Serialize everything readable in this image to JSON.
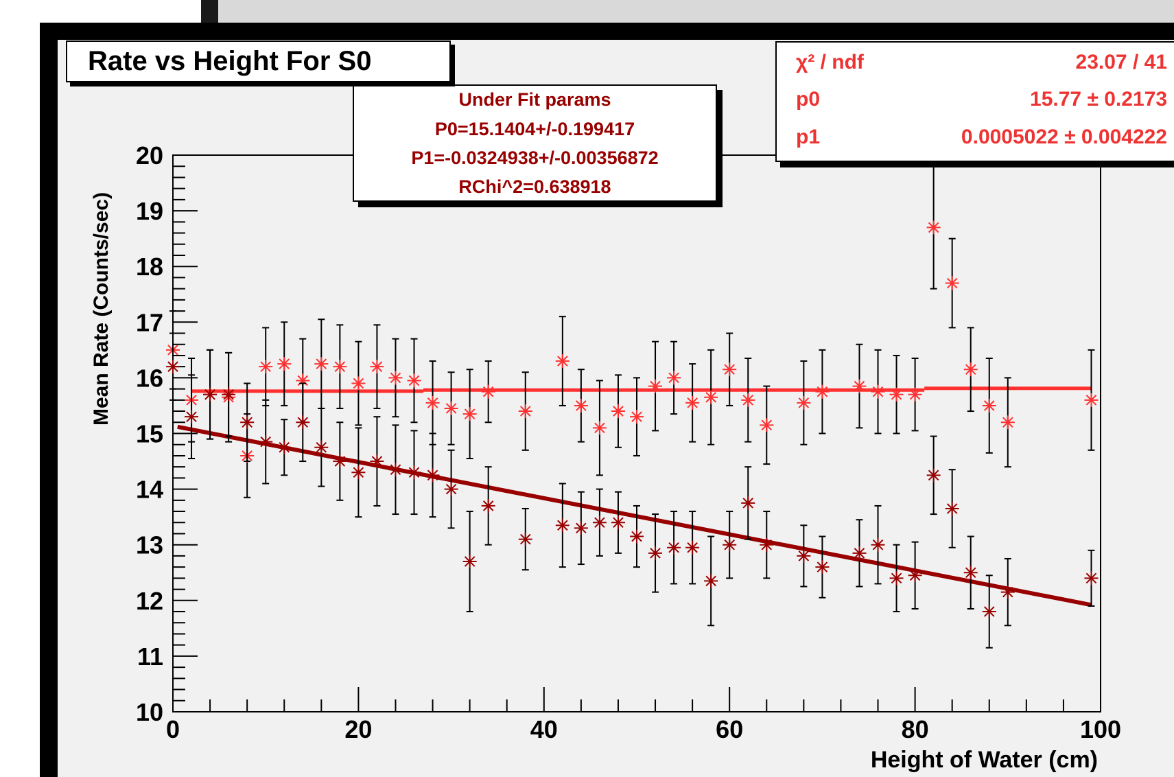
{
  "colors": {
    "background": "#f1f1f1",
    "under_fit_markers": "#990000",
    "fit_markers": "#ff3030",
    "under_fit_line": "#990000",
    "fit_line": "#ff3030",
    "stat_text": "#e33333"
  },
  "title_box": {
    "text": "Rate vs Height For S0"
  },
  "fit_box": {
    "heading": "Under Fit params",
    "p0": "P0=15.1404+/-0.199417",
    "p1": "P1=-0.0324938+/-0.00356872",
    "rchi": "RChi^2=0.638918"
  },
  "stat_box": {
    "rows": [
      {
        "label": "χ² / ndf",
        "value": "23.07 / 41"
      },
      {
        "label": "p0",
        "value": "15.77 ± 0.2173"
      },
      {
        "label": "p1",
        "value": "0.0005022 ± 0.004222"
      }
    ]
  },
  "chart_data": {
    "type": "scatter",
    "title": "Rate vs Height For S0",
    "xlabel": "Height of Water (cm)",
    "ylabel": "Mean Rate (Counts/sec)",
    "xlim": [
      0,
      100
    ],
    "ylim": [
      10,
      20
    ],
    "x_ticks": [
      0,
      20,
      40,
      60,
      80,
      100
    ],
    "y_ticks": [
      10,
      11,
      12,
      13,
      14,
      15,
      16,
      17,
      18,
      19,
      20
    ],
    "grid": false,
    "series": [
      {
        "marker_color": "#ff3030",
        "points": [
          {
            "x": 0,
            "y": 16.5,
            "err": 0.7
          },
          {
            "x": 2,
            "y": 15.6,
            "err": 0.75
          },
          {
            "x": 4,
            "y": 15.7,
            "err": 0.8
          },
          {
            "x": 6,
            "y": 15.65,
            "err": 0.8
          },
          {
            "x": 8,
            "y": 14.6,
            "err": 0.75
          },
          {
            "x": 10,
            "y": 16.2,
            "err": 0.7
          },
          {
            "x": 12,
            "y": 16.25,
            "err": 0.75
          },
          {
            "x": 14,
            "y": 15.95,
            "err": 0.75
          },
          {
            "x": 16,
            "y": 16.25,
            "err": 0.8
          },
          {
            "x": 18,
            "y": 16.2,
            "err": 0.75
          },
          {
            "x": 20,
            "y": 15.9,
            "err": 0.75
          },
          {
            "x": 22,
            "y": 16.2,
            "err": 0.75
          },
          {
            "x": 24,
            "y": 16.0,
            "err": 0.7
          },
          {
            "x": 26,
            "y": 15.95,
            "err": 0.75
          },
          {
            "x": 28,
            "y": 15.55,
            "err": 0.75
          },
          {
            "x": 30,
            "y": 15.45,
            "err": 0.65
          },
          {
            "x": 32,
            "y": 15.35,
            "err": 0.8
          },
          {
            "x": 34,
            "y": 15.75,
            "err": 0.55
          },
          {
            "x": 38,
            "y": 15.4,
            "err": 0.7
          },
          {
            "x": 42,
            "y": 16.3,
            "err": 0.8
          },
          {
            "x": 44,
            "y": 15.5,
            "err": 0.65
          },
          {
            "x": 46,
            "y": 15.1,
            "err": 0.85
          },
          {
            "x": 48,
            "y": 15.4,
            "err": 0.65
          },
          {
            "x": 50,
            "y": 15.3,
            "err": 0.7
          },
          {
            "x": 52,
            "y": 15.85,
            "err": 0.8
          },
          {
            "x": 54,
            "y": 16.0,
            "err": 0.65
          },
          {
            "x": 56,
            "y": 15.55,
            "err": 0.7
          },
          {
            "x": 58,
            "y": 15.65,
            "err": 0.85
          },
          {
            "x": 60,
            "y": 16.15,
            "err": 0.65
          },
          {
            "x": 62,
            "y": 15.6,
            "err": 0.75
          },
          {
            "x": 64,
            "y": 15.15,
            "err": 0.7
          },
          {
            "x": 68,
            "y": 15.55,
            "err": 0.75
          },
          {
            "x": 70,
            "y": 15.75,
            "err": 0.75
          },
          {
            "x": 74,
            "y": 15.85,
            "err": 0.75
          },
          {
            "x": 76,
            "y": 15.75,
            "err": 0.75
          },
          {
            "x": 78,
            "y": 15.7,
            "err": 0.7
          },
          {
            "x": 80,
            "y": 15.7,
            "err": 0.65
          },
          {
            "x": 82,
            "y": 18.7,
            "err": 1.1
          },
          {
            "x": 84,
            "y": 17.7,
            "err": 0.8
          },
          {
            "x": 86,
            "y": 16.15,
            "err": 0.75
          },
          {
            "x": 88,
            "y": 15.5,
            "err": 0.85
          },
          {
            "x": 90,
            "y": 15.2,
            "err": 0.8
          },
          {
            "x": 99,
            "y": 15.6,
            "err": 0.9
          }
        ],
        "fit_segments": [
          {
            "x0": 2,
            "x1": 27,
            "y": 15.76
          },
          {
            "x0": 27,
            "x1": 81,
            "y": 15.78
          },
          {
            "x0": 81,
            "x1": 99,
            "y": 15.81
          }
        ]
      },
      {
        "marker_color": "#990000",
        "points": [
          {
            "x": 0,
            "y": 16.2,
            "err": 0.6
          },
          {
            "x": 2,
            "y": 15.3,
            "err": 0.75
          },
          {
            "x": 4,
            "y": 15.7,
            "err": 0.8
          },
          {
            "x": 6,
            "y": 15.7,
            "err": 0.75
          },
          {
            "x": 8,
            "y": 15.2,
            "err": 0.7
          },
          {
            "x": 10,
            "y": 14.85,
            "err": 0.75
          },
          {
            "x": 12,
            "y": 14.75,
            "err": 0.5
          },
          {
            "x": 14,
            "y": 15.2,
            "err": 0.7
          },
          {
            "x": 16,
            "y": 14.75,
            "err": 0.7
          },
          {
            "x": 18,
            "y": 14.5,
            "err": 0.7
          },
          {
            "x": 20,
            "y": 14.3,
            "err": 0.8
          },
          {
            "x": 22,
            "y": 14.5,
            "err": 0.8
          },
          {
            "x": 24,
            "y": 14.35,
            "err": 0.8
          },
          {
            "x": 26,
            "y": 14.3,
            "err": 0.75
          },
          {
            "x": 28,
            "y": 14.25,
            "err": 0.75
          },
          {
            "x": 30,
            "y": 14.0,
            "err": 0.7
          },
          {
            "x": 32,
            "y": 12.7,
            "err": 0.9
          },
          {
            "x": 34,
            "y": 13.7,
            "err": 0.7
          },
          {
            "x": 38,
            "y": 13.1,
            "err": 0.55
          },
          {
            "x": 42,
            "y": 13.35,
            "err": 0.75
          },
          {
            "x": 44,
            "y": 13.3,
            "err": 0.65
          },
          {
            "x": 46,
            "y": 13.4,
            "err": 0.6
          },
          {
            "x": 48,
            "y": 13.4,
            "err": 0.55
          },
          {
            "x": 50,
            "y": 13.15,
            "err": 0.55
          },
          {
            "x": 52,
            "y": 12.85,
            "err": 0.7
          },
          {
            "x": 54,
            "y": 12.95,
            "err": 0.65
          },
          {
            "x": 56,
            "y": 12.95,
            "err": 0.65
          },
          {
            "x": 58,
            "y": 12.35,
            "err": 0.8
          },
          {
            "x": 60,
            "y": 13.0,
            "err": 0.6
          },
          {
            "x": 62,
            "y": 13.75,
            "err": 0.65
          },
          {
            "x": 64,
            "y": 13.0,
            "err": 0.6
          },
          {
            "x": 68,
            "y": 12.8,
            "err": 0.55
          },
          {
            "x": 70,
            "y": 12.6,
            "err": 0.55
          },
          {
            "x": 74,
            "y": 12.85,
            "err": 0.6
          },
          {
            "x": 76,
            "y": 13.0,
            "err": 0.7
          },
          {
            "x": 78,
            "y": 12.4,
            "err": 0.6
          },
          {
            "x": 80,
            "y": 12.45,
            "err": 0.6
          },
          {
            "x": 82,
            "y": 14.25,
            "err": 0.7
          },
          {
            "x": 84,
            "y": 13.65,
            "err": 0.7
          },
          {
            "x": 86,
            "y": 12.5,
            "err": 0.65
          },
          {
            "x": 88,
            "y": 11.8,
            "err": 0.65
          },
          {
            "x": 90,
            "y": 12.15,
            "err": 0.6
          },
          {
            "x": 99,
            "y": 12.4,
            "err": 0.5
          }
        ],
        "fit_line": {
          "x0": 0.5,
          "x1": 99,
          "y0": 15.12,
          "y1": 11.92
        }
      }
    ]
  }
}
